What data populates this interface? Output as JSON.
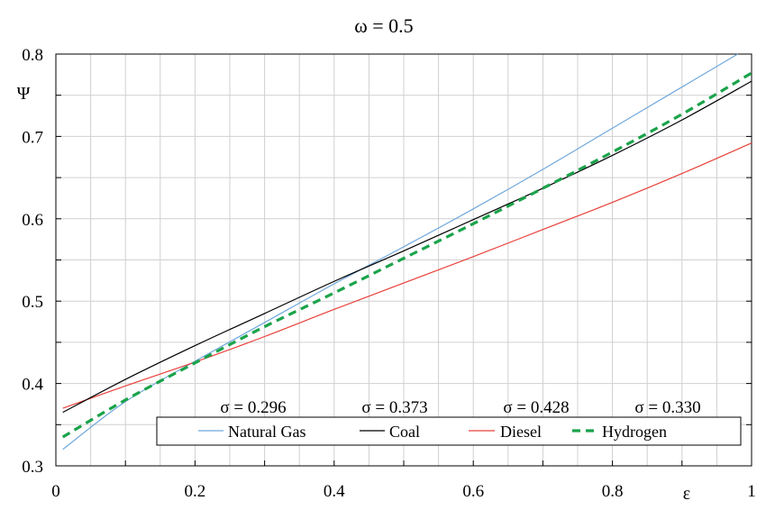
{
  "chart_data": {
    "type": "line",
    "title": "ω = 0.5",
    "xlabel": "ε",
    "ylabel": "Ψ",
    "xlim": [
      0,
      1
    ],
    "ylim": [
      0.3,
      0.8
    ],
    "x_ticks": [
      "0",
      "0.2",
      "0.4",
      "0.6",
      "0.8",
      "1"
    ],
    "y_ticks": [
      "0.3",
      "0.4",
      "0.5",
      "0.6",
      "0.7",
      "0.8"
    ],
    "grid": true,
    "legend_position": "bottom",
    "series": [
      {
        "name": "Natural Gas",
        "sigma_label": "σ = 0.296",
        "color": "#6fa8dc",
        "dash": "solid",
        "x": [
          0.01,
          0.1,
          0.2,
          0.3,
          0.4,
          0.5,
          0.6,
          0.7,
          0.8,
          0.9,
          0.98
        ],
        "y": [
          0.32,
          0.378,
          0.427,
          0.474,
          0.521,
          0.566,
          0.612,
          0.66,
          0.71,
          0.76,
          0.8
        ]
      },
      {
        "name": "Coal",
        "sigma_label": "σ = 0.373",
        "color": "#000000",
        "dash": "solid",
        "x": [
          0.01,
          0.1,
          0.2,
          0.3,
          0.4,
          0.5,
          0.6,
          0.7,
          0.8,
          0.9,
          1.0
        ],
        "y": [
          0.365,
          0.405,
          0.446,
          0.485,
          0.524,
          0.561,
          0.599,
          0.637,
          0.677,
          0.72,
          0.767
        ]
      },
      {
        "name": "Diesel",
        "sigma_label": "σ = 0.428",
        "color": "#e8403a",
        "dash": "solid",
        "x": [
          0.01,
          0.1,
          0.2,
          0.3,
          0.4,
          0.5,
          0.6,
          0.7,
          0.8,
          0.9,
          1.0
        ],
        "y": [
          0.37,
          0.397,
          0.426,
          0.457,
          0.49,
          0.522,
          0.554,
          0.587,
          0.62,
          0.655,
          0.692
        ]
      },
      {
        "name": "Hydrogen",
        "sigma_label": "σ = 0.330",
        "color": "#1aa34a",
        "dash": "dashed",
        "x": [
          0.01,
          0.1,
          0.2,
          0.3,
          0.4,
          0.5,
          0.6,
          0.7,
          0.8,
          0.9,
          1.0
        ],
        "y": [
          0.335,
          0.38,
          0.425,
          0.469,
          0.51,
          0.552,
          0.594,
          0.637,
          0.681,
          0.727,
          0.777
        ]
      }
    ]
  }
}
